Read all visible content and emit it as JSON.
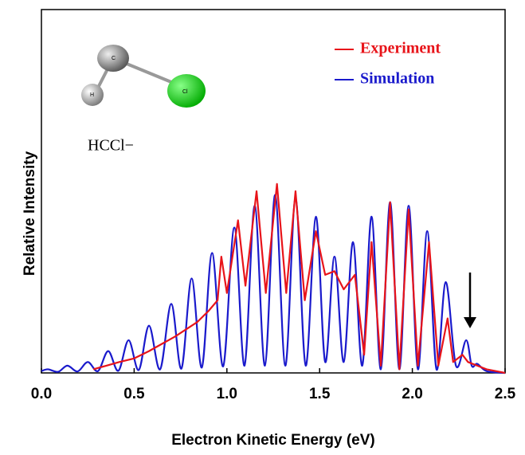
{
  "chart_data": {
    "type": "line",
    "x_label": "Electron Kinetic Energy (eV)",
    "y_label": "Relative Intensity",
    "annotation": "HCCl−",
    "molecule_labels": [
      "C",
      "H",
      "Cl"
    ],
    "legend": "upper right",
    "xlim": [
      0,
      2.5
    ],
    "ylim": [
      0,
      1
    ],
    "xticks": [
      {
        "value": 0,
        "label": "0.0"
      },
      0.5,
      {
        "value": 1,
        "label": "1.0"
      },
      1.5,
      {
        "value": 2,
        "label": "2.0"
      },
      2.5
    ],
    "series": [
      {
        "name": "Experiment",
        "color": "#e8141a",
        "x": [
          0.28,
          0.35,
          0.42,
          0.5,
          0.58,
          0.65,
          0.72,
          0.78,
          0.84,
          0.9,
          0.95,
          0.97,
          1.0,
          1.06,
          1.1,
          1.16,
          1.21,
          1.27,
          1.32,
          1.37,
          1.42,
          1.48,
          1.53,
          1.58,
          1.63,
          1.69,
          1.74,
          1.78,
          1.83,
          1.88,
          1.93,
          1.98,
          2.03,
          2.09,
          2.14,
          2.19,
          2.22,
          2.27,
          2.3,
          2.35,
          2.4,
          2.45,
          2.5
        ],
        "values": [
          0.01,
          0.02,
          0.03,
          0.04,
          0.06,
          0.08,
          0.1,
          0.12,
          0.14,
          0.17,
          0.2,
          0.32,
          0.22,
          0.42,
          0.24,
          0.5,
          0.22,
          0.52,
          0.22,
          0.5,
          0.2,
          0.39,
          0.27,
          0.28,
          0.23,
          0.27,
          0.05,
          0.36,
          0.02,
          0.47,
          0.01,
          0.45,
          0.02,
          0.36,
          0.02,
          0.15,
          0.03,
          0.05,
          0.03,
          0.02,
          0.01,
          0.005,
          0
        ]
      },
      {
        "name": "Simulation",
        "color": "#1a1acc",
        "x": [
          0,
          0.035,
          0.09,
          0.14,
          0.195,
          0.25,
          0.305,
          0.36,
          0.415,
          0.47,
          0.525,
          0.58,
          0.64,
          0.7,
          0.755,
          0.81,
          0.865,
          0.92,
          0.98,
          1.04,
          1.095,
          1.15,
          1.205,
          1.26,
          1.315,
          1.37,
          1.425,
          1.48,
          1.53,
          1.58,
          1.63,
          1.68,
          1.73,
          1.78,
          1.83,
          1.88,
          1.93,
          1.98,
          2.03,
          2.08,
          2.13,
          2.18,
          2.235,
          2.29,
          2.32,
          2.35,
          2.4,
          2.5
        ],
        "values": [
          0.005,
          0.01,
          0.003,
          0.02,
          0.004,
          0.03,
          0.005,
          0.06,
          0.006,
          0.09,
          0.008,
          0.13,
          0.01,
          0.19,
          0.012,
          0.26,
          0.015,
          0.33,
          0.018,
          0.4,
          0.02,
          0.46,
          0.02,
          0.49,
          0.02,
          0.48,
          0.02,
          0.43,
          0.03,
          0.32,
          0.03,
          0.36,
          0.02,
          0.43,
          0.01,
          0.47,
          0.01,
          0.46,
          0.01,
          0.39,
          0.01,
          0.25,
          0.02,
          0.09,
          0.02,
          0.025,
          0.005,
          0
        ]
      }
    ]
  }
}
